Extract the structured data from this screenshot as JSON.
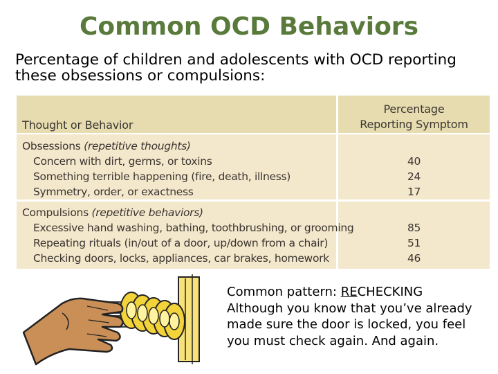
{
  "title": "Common OCD Behaviors",
  "subtitle": "Percentage of children and adolescents with OCD reporting these obsessions or compulsions:",
  "table": {
    "col_left": "Thought or Behavior",
    "col_right_line1": "Percentage",
    "col_right_line2": "Reporting Symptom",
    "groups": [
      {
        "label": "Obsessions",
        "note": "(repetitive thoughts)",
        "items": [
          {
            "label": "Concern with dirt, germs, or toxins",
            "value": "40"
          },
          {
            "label": "Something terrible happening (fire, death, illness)",
            "value": "24"
          },
          {
            "label": "Symmetry, order, or exactness",
            "value": "17"
          }
        ]
      },
      {
        "label": "Compulsions",
        "note": "(repetitive behaviors)",
        "items": [
          {
            "label": "Excessive hand washing, bathing, toothbrushing, or grooming",
            "value": "85"
          },
          {
            "label": "Repeating rituals (in/out of a door, up/down from a chair)",
            "value": "51"
          },
          {
            "label": "Checking doors, locks, appliances, car brakes, homework",
            "value": "46"
          }
        ]
      }
    ]
  },
  "caption": {
    "line1_prefix": "Common pattern: ",
    "line1_underlined": "RE",
    "line1_rest": "CHECKING",
    "line2": "Although you know that you’ve already",
    "line3": "made sure the door is locked, you feel",
    "line4": "you must check again. And again."
  },
  "colors": {
    "title": "#5a7a3c",
    "table_header_bg": "#e6dcb0",
    "table_body_bg": "#f3e7cc",
    "table_text": "#3b3530"
  },
  "illustration": "hand-turning-doorknob-repeatedly"
}
